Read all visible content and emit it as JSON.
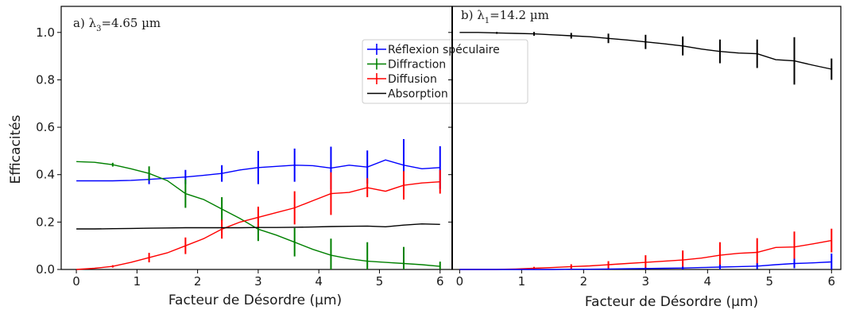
{
  "chart_data": [
    {
      "type": "line",
      "panel_title": "a) λ",
      "panel_title_sub": "3",
      "panel_title_rest": "=4.65 µm",
      "xlabel": "Facteur de Désordre (µm)",
      "ylabel": "Efficacités",
      "xlim": [
        -0.25,
        6.2
      ],
      "ylim": [
        0,
        1.11
      ],
      "xticks": [
        "0",
        "1",
        "2",
        "3",
        "4",
        "5",
        "6"
      ],
      "yticks": [
        "0.0",
        "0.2",
        "0.4",
        "0.6",
        "0.8",
        "1.0"
      ],
      "legend_position": "upper-center",
      "x": [
        0,
        0.3,
        0.6,
        0.9,
        1.2,
        1.5,
        1.8,
        2.1,
        2.4,
        2.7,
        3.0,
        3.3,
        3.6,
        3.9,
        4.2,
        4.5,
        4.8,
        5.1,
        5.4,
        5.7,
        6.0
      ],
      "series": [
        {
          "name": "Réflexion spéculaire",
          "color": "#0000ff",
          "values": [
            0.374,
            0.374,
            0.374,
            0.376,
            0.38,
            0.385,
            0.39,
            0.397,
            0.405,
            0.42,
            0.43,
            0.435,
            0.44,
            0.438,
            0.428,
            0.44,
            0.432,
            0.462,
            0.44,
            0.425,
            0.43
          ],
          "err_x": [
            1.2,
            1.8,
            2.4,
            3.0,
            3.6,
            4.2,
            4.8,
            5.4,
            6.0
          ],
          "err": [
            0.02,
            0.03,
            0.035,
            0.07,
            0.07,
            0.09,
            0.07,
            0.11,
            0.09
          ],
          "has_errorbars": true
        },
        {
          "name": "Diffraction",
          "color": "#008000",
          "values": [
            0.455,
            0.452,
            0.442,
            0.425,
            0.405,
            0.375,
            0.32,
            0.295,
            0.255,
            0.215,
            0.17,
            0.145,
            0.115,
            0.085,
            0.06,
            0.045,
            0.035,
            0.03,
            0.025,
            0.02,
            0.013
          ],
          "err_x": [
            0.6,
            1.2,
            1.8,
            2.4,
            3.0,
            3.6,
            4.2,
            4.8,
            5.4,
            6.0
          ],
          "err": [
            0.008,
            0.03,
            0.06,
            0.05,
            0.05,
            0.06,
            0.07,
            0.08,
            0.07,
            0.02
          ],
          "has_errorbars": true
        },
        {
          "name": "Diffusion",
          "color": "#ff0000",
          "values": [
            0.0,
            0.005,
            0.013,
            0.03,
            0.05,
            0.07,
            0.1,
            0.13,
            0.17,
            0.2,
            0.22,
            0.24,
            0.26,
            0.29,
            0.32,
            0.325,
            0.345,
            0.33,
            0.355,
            0.365,
            0.37
          ],
          "err_x": [
            0.6,
            1.2,
            1.8,
            2.4,
            3.0,
            3.6,
            4.2,
            4.8,
            5.4,
            6.0
          ],
          "err": [
            0.005,
            0.02,
            0.035,
            0.04,
            0.045,
            0.07,
            0.09,
            0.04,
            0.06,
            0.05
          ],
          "has_errorbars": true
        },
        {
          "name": "Absorption",
          "color": "#000000",
          "values": [
            0.171,
            0.171,
            0.172,
            0.173,
            0.174,
            0.175,
            0.176,
            0.176,
            0.176,
            0.176,
            0.177,
            0.177,
            0.178,
            0.179,
            0.181,
            0.182,
            0.183,
            0.18,
            0.187,
            0.192,
            0.19
          ],
          "err_x": [],
          "err": [],
          "has_errorbars": false
        }
      ]
    },
    {
      "type": "line",
      "panel_title": "b) λ",
      "panel_title_sub": "1",
      "panel_title_rest": "=14.2 µm",
      "xlabel": "Facteur de Désordre (µm)",
      "ylabel": "",
      "xlim": [
        -0.12,
        6.15
      ],
      "ylim": [
        0,
        1.11
      ],
      "xticks": [
        "0",
        "1",
        "2",
        "3",
        "4",
        "5",
        "6"
      ],
      "yticks": [],
      "x": [
        0,
        0.3,
        0.6,
        0.9,
        1.2,
        1.5,
        1.8,
        2.1,
        2.4,
        2.7,
        3.0,
        3.3,
        3.6,
        3.9,
        4.2,
        4.5,
        4.8,
        5.1,
        5.4,
        5.7,
        6.0
      ],
      "series": [
        {
          "name": "Absorption",
          "color": "#000000",
          "values": [
            1.0,
            1.0,
            0.998,
            0.996,
            0.994,
            0.99,
            0.986,
            0.982,
            0.975,
            0.968,
            0.96,
            0.952,
            0.943,
            0.93,
            0.92,
            0.913,
            0.91,
            0.885,
            0.88,
            0.862,
            0.845
          ],
          "err_x": [
            0.6,
            1.2,
            1.8,
            2.4,
            3.0,
            3.6,
            4.2,
            4.8,
            5.4,
            6.0
          ],
          "err": [
            0.004,
            0.008,
            0.012,
            0.02,
            0.03,
            0.04,
            0.05,
            0.06,
            0.1,
            0.045
          ],
          "has_errorbars": true
        },
        {
          "name": "Diffusion",
          "color": "#ff0000",
          "values": [
            0.0,
            0.0,
            0.0,
            0.002,
            0.005,
            0.008,
            0.012,
            0.015,
            0.02,
            0.025,
            0.03,
            0.035,
            0.04,
            0.048,
            0.06,
            0.068,
            0.072,
            0.093,
            0.095,
            0.108,
            0.122
          ],
          "err_x": [
            1.2,
            1.8,
            2.4,
            3.0,
            3.6,
            4.2,
            4.8,
            5.4,
            6.0
          ],
          "err": [
            0.006,
            0.01,
            0.015,
            0.03,
            0.04,
            0.055,
            0.06,
            0.065,
            0.05
          ],
          "has_errorbars": true
        },
        {
          "name": "Réflexion spéculaire",
          "color": "#0000ff",
          "values": [
            0.0,
            0.0,
            0.0,
            0.0,
            0.0,
            0.0,
            0.001,
            0.001,
            0.002,
            0.003,
            0.004,
            0.005,
            0.006,
            0.008,
            0.01,
            0.012,
            0.014,
            0.02,
            0.025,
            0.028,
            0.032
          ],
          "err_x": [
            2.4,
            3.0,
            3.6,
            4.2,
            4.8,
            5.4,
            6.0
          ],
          "err": [
            0.003,
            0.004,
            0.006,
            0.01,
            0.012,
            0.02,
            0.035
          ],
          "has_errorbars": true
        }
      ]
    }
  ]
}
